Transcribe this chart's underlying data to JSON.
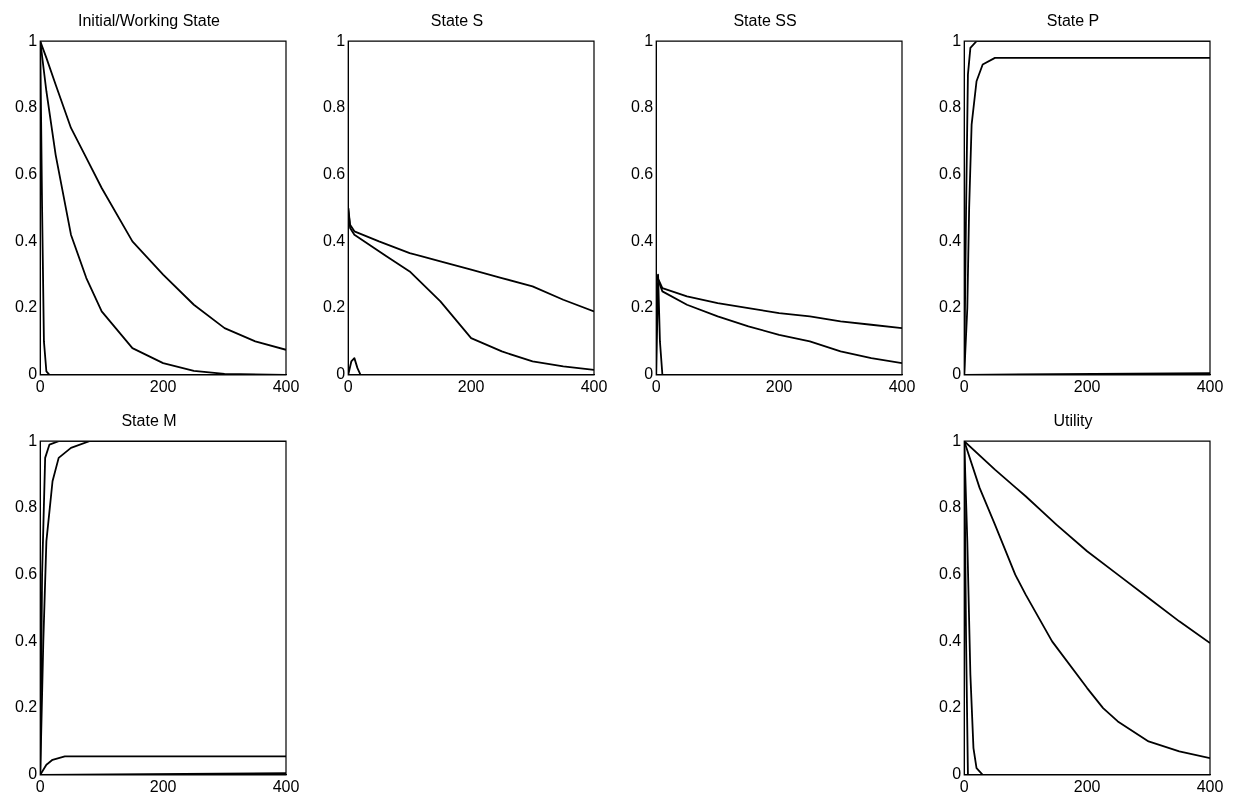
{
  "chart_data": [
    {
      "type": "line",
      "title": "Initial/Working State",
      "xlim": [
        0,
        400
      ],
      "xticks": [
        0,
        200,
        400
      ],
      "ylim": [
        0,
        1
      ],
      "yticks": [
        0,
        0.2,
        0.4,
        0.6,
        0.8,
        1
      ],
      "grid": false,
      "series": [
        {
          "color": "#000000",
          "x": [
            0,
            10,
            25,
            50,
            75,
            100,
            150,
            200,
            250,
            300,
            350,
            400
          ],
          "values": [
            1,
            0.95,
            0.87,
            0.74,
            0.65,
            0.56,
            0.4,
            0.3,
            0.21,
            0.14,
            0.1,
            0.075
          ]
        },
        {
          "color": "#000000",
          "x": [
            0,
            10,
            25,
            50,
            75,
            100,
            150,
            200,
            250,
            300,
            400
          ],
          "values": [
            1,
            0.85,
            0.66,
            0.42,
            0.29,
            0.19,
            0.08,
            0.035,
            0.012,
            0.003,
            0
          ]
        },
        {
          "color": "#000000",
          "x": [
            0,
            3,
            6,
            10,
            15,
            400
          ],
          "values": [
            1,
            0.5,
            0.1,
            0.01,
            0,
            0
          ]
        }
      ]
    },
    {
      "type": "line",
      "title": "State S",
      "xlim": [
        0,
        400
      ],
      "xticks": [
        0,
        200,
        400
      ],
      "ylim": [
        0,
        1
      ],
      "yticks": [
        0,
        0.2,
        0.4,
        0.6,
        0.8,
        1
      ],
      "grid": false,
      "series": [
        {
          "color": "#000000",
          "x": [
            0,
            3,
            10,
            50,
            100,
            150,
            200,
            250,
            300,
            350,
            400
          ],
          "values": [
            0.5,
            0.45,
            0.43,
            0.4,
            0.365,
            0.34,
            0.315,
            0.29,
            0.265,
            0.225,
            0.19
          ]
        },
        {
          "color": "#000000",
          "x": [
            0,
            3,
            10,
            50,
            100,
            150,
            200,
            250,
            300,
            350,
            400
          ],
          "values": [
            0.5,
            0.44,
            0.42,
            0.37,
            0.31,
            0.22,
            0.11,
            0.07,
            0.04,
            0.025,
            0.015
          ]
        },
        {
          "color": "#000000",
          "x": [
            0,
            5,
            10,
            15,
            20,
            400
          ],
          "values": [
            0,
            0.04,
            0.05,
            0.02,
            0,
            0
          ]
        }
      ]
    },
    {
      "type": "line",
      "title": "State SS",
      "xlim": [
        0,
        400
      ],
      "xticks": [
        0,
        200,
        400
      ],
      "ylim": [
        0,
        1
      ],
      "yticks": [
        0,
        0.2,
        0.4,
        0.6,
        0.8,
        1
      ],
      "grid": false,
      "series": [
        {
          "color": "#000000",
          "x": [
            0,
            5,
            10,
            50,
            100,
            150,
            200,
            250,
            300,
            350,
            400
          ],
          "values": [
            0.3,
            0.28,
            0.26,
            0.235,
            0.215,
            0.2,
            0.185,
            0.175,
            0.16,
            0.15,
            0.14
          ]
        },
        {
          "color": "#000000",
          "x": [
            0,
            10,
            50,
            100,
            150,
            200,
            250,
            300,
            350,
            400
          ],
          "values": [
            0.3,
            0.25,
            0.21,
            0.175,
            0.145,
            0.12,
            0.1,
            0.07,
            0.05,
            0.035
          ]
        },
        {
          "color": "#000000",
          "x": [
            0,
            3,
            6,
            10,
            400
          ],
          "values": [
            0,
            0.3,
            0.1,
            0,
            0
          ]
        }
      ]
    },
    {
      "type": "line",
      "title": "State P",
      "xlim": [
        0,
        400
      ],
      "xticks": [
        0,
        200,
        400
      ],
      "ylim": [
        0,
        1
      ],
      "yticks": [
        0,
        0.2,
        0.4,
        0.6,
        0.8,
        1
      ],
      "grid": false,
      "series": [
        {
          "color": "#000000",
          "x": [
            0,
            3,
            6,
            10,
            20,
            400
          ],
          "values": [
            0,
            0.5,
            0.9,
            0.98,
            1,
            1
          ]
        },
        {
          "color": "#000000",
          "x": [
            0,
            5,
            8,
            12,
            20,
            30,
            50,
            400
          ],
          "values": [
            0,
            0.2,
            0.5,
            0.75,
            0.88,
            0.93,
            0.95,
            0.95
          ]
        },
        {
          "color": "#000000",
          "x": [
            0,
            400
          ],
          "values": [
            0,
            0.005
          ]
        }
      ]
    },
    {
      "type": "line",
      "title": "State M",
      "xlim": [
        0,
        400
      ],
      "xticks": [
        0,
        200,
        400
      ],
      "ylim": [
        0,
        1
      ],
      "yticks": [
        0,
        0.2,
        0.4,
        0.6,
        0.8,
        1
      ],
      "grid": false,
      "series": [
        {
          "color": "#000000",
          "x": [
            0,
            3,
            8,
            15,
            30,
            400
          ],
          "values": [
            0,
            0.6,
            0.95,
            0.99,
            1,
            1
          ]
        },
        {
          "color": "#000000",
          "x": [
            0,
            5,
            10,
            20,
            30,
            50,
            80,
            400
          ],
          "values": [
            0,
            0.4,
            0.7,
            0.88,
            0.95,
            0.98,
            1,
            1
          ]
        },
        {
          "color": "#000000",
          "x": [
            0,
            10,
            20,
            40,
            400
          ],
          "values": [
            0,
            0.03,
            0.045,
            0.055,
            0.055
          ]
        },
        {
          "color": "#000000",
          "x": [
            0,
            400
          ],
          "values": [
            0,
            0.005
          ]
        }
      ]
    },
    {
      "type": "line",
      "title": "Utility",
      "xlim": [
        0,
        400
      ],
      "xticks": [
        0,
        200,
        400
      ],
      "ylim": [
        0,
        1
      ],
      "yticks": [
        0,
        0.2,
        0.4,
        0.6,
        0.8,
        1
      ],
      "grid": false,
      "series": [
        {
          "color": "#000000",
          "x": [
            0,
            50,
            100,
            150,
            200,
            250,
            300,
            350,
            400
          ],
          "values": [
            1,
            0.915,
            0.835,
            0.75,
            0.67,
            0.6,
            0.53,
            0.46,
            0.395
          ]
        },
        {
          "color": "#000000",
          "x": [
            0,
            25,
            50,
            83,
            100,
            143,
            200,
            226,
            250,
            300,
            350,
            400
          ],
          "values": [
            1,
            0.86,
            0.75,
            0.6,
            0.54,
            0.4,
            0.26,
            0.2,
            0.16,
            0.1,
            0.07,
            0.05
          ]
        },
        {
          "color": "#000000",
          "x": [
            0,
            5,
            10,
            15,
            20,
            30,
            400
          ],
          "values": [
            1,
            0.7,
            0.3,
            0.08,
            0.02,
            0,
            0
          ]
        },
        {
          "color": "#000000",
          "x": [
            0,
            3,
            6,
            400
          ],
          "values": [
            1,
            0.4,
            0,
            0
          ]
        }
      ]
    }
  ]
}
